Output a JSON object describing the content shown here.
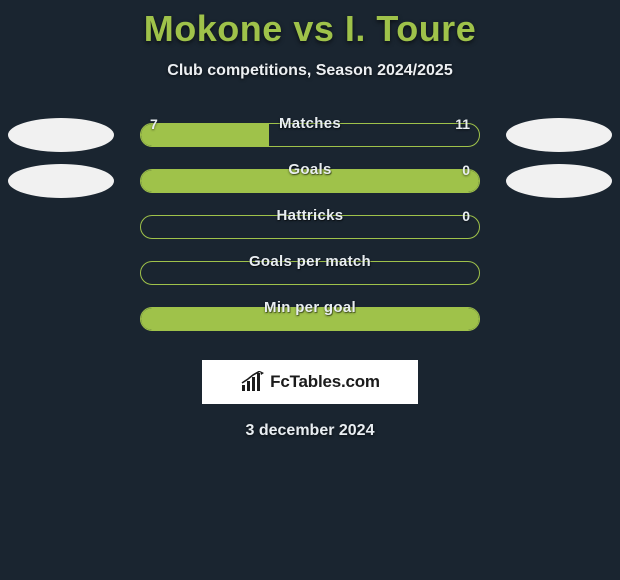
{
  "colors": {
    "background": "#1a2530",
    "accent": "#9fc24a",
    "text_light": "#e9eef2",
    "avatar_bg": "#f1f1f1",
    "logo_bg": "#ffffff",
    "logo_text": "#1b1b1b"
  },
  "title": {
    "player1": "Mokone",
    "vs": "vs",
    "player2": "I. Toure"
  },
  "subtitle": "Club competitions, Season 2024/2025",
  "rows": [
    {
      "label": "Matches",
      "left_value": "7",
      "right_value": "11",
      "fill_left_pct": 38,
      "show_left_avatar": true,
      "show_right_avatar": true,
      "fill_full": false
    },
    {
      "label": "Goals",
      "left_value": "",
      "right_value": "0",
      "fill_left_pct": 0,
      "show_left_avatar": true,
      "show_right_avatar": true,
      "fill_full": true
    },
    {
      "label": "Hattricks",
      "left_value": "",
      "right_value": "0",
      "fill_left_pct": 0,
      "show_left_avatar": false,
      "show_right_avatar": false,
      "fill_full": false
    },
    {
      "label": "Goals per match",
      "left_value": "",
      "right_value": "",
      "fill_left_pct": 0,
      "show_left_avatar": false,
      "show_right_avatar": false,
      "fill_full": false
    },
    {
      "label": "Min per goal",
      "left_value": "",
      "right_value": "",
      "fill_left_pct": 0,
      "show_left_avatar": false,
      "show_right_avatar": false,
      "fill_full": true
    }
  ],
  "logo": {
    "text": "FcTables.com"
  },
  "date": "3 december 2024"
}
